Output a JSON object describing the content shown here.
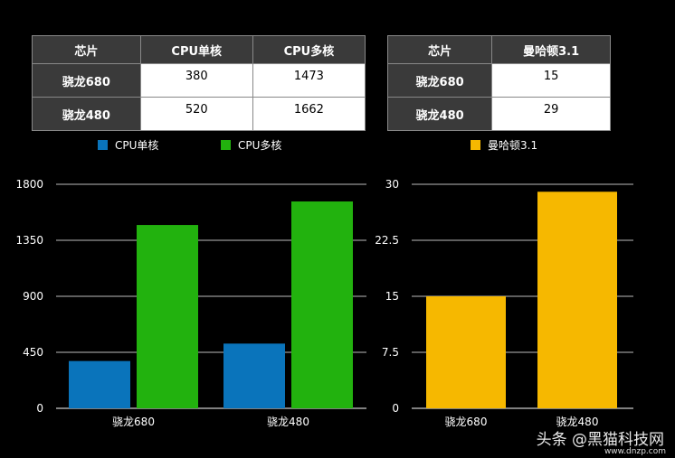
{
  "table1": {
    "headers": [
      "芯片",
      "CPU单核",
      "CPU多核"
    ],
    "rows": [
      {
        "name": "骁龙680",
        "single": "380",
        "multi": "1473"
      },
      {
        "name": "骁龙480",
        "single": "520",
        "multi": "1662"
      }
    ]
  },
  "table2": {
    "headers": [
      "芯片",
      "曼哈顿3.1"
    ],
    "rows": [
      {
        "name": "骁龙680",
        "score": "15"
      },
      {
        "name": "骁龙480",
        "score": "29"
      }
    ]
  },
  "colors": {
    "cpu_single": "#0a74bb",
    "cpu_multi": "#22b20e",
    "manhattan": "#f6b800"
  },
  "chart_data": [
    {
      "type": "bar",
      "categories": [
        "骁龙680",
        "骁龙480"
      ],
      "series": [
        {
          "name": "CPU单核",
          "values": [
            380,
            520
          ]
        },
        {
          "name": "CPU多核",
          "values": [
            1473,
            1662
          ]
        }
      ],
      "yticks": [
        "0",
        "450",
        "900",
        "1350",
        "1800"
      ],
      "ylim": [
        0,
        1800
      ],
      "grid": true,
      "legend": "top"
    },
    {
      "type": "bar",
      "categories": [
        "骁龙680",
        "骁龙480"
      ],
      "series": [
        {
          "name": "曼哈顿3.1",
          "values": [
            15,
            29
          ]
        }
      ],
      "yticks": [
        "0",
        "7.5",
        "15",
        "22.5",
        "30"
      ],
      "ylim": [
        0,
        30
      ],
      "grid": true,
      "legend": "top"
    }
  ],
  "watermark": {
    "text": "头条 @黑猫科技网",
    "url": "www.dnzp.com"
  }
}
